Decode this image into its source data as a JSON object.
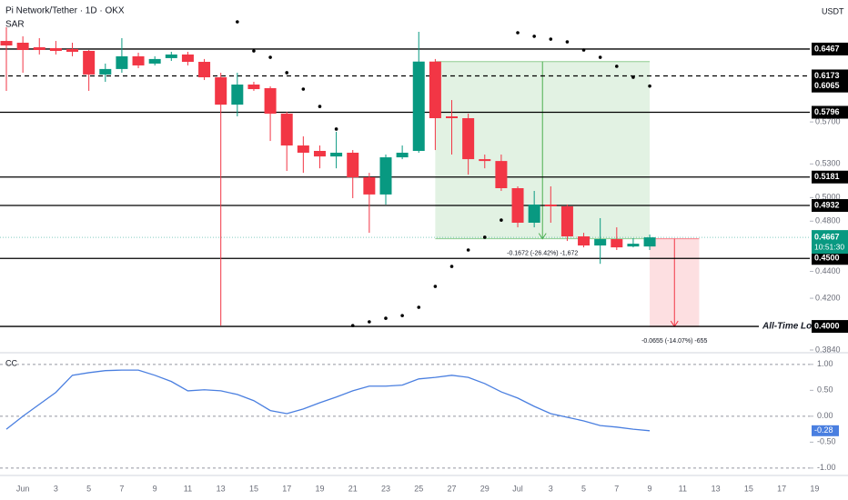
{
  "chart_data": [
    {
      "type": "candlestick",
      "title": "Pi Network/Tether · 1D · OKX",
      "indicator": "SAR",
      "currency": "USDT",
      "up_color": "#089981",
      "down_color": "#f23645",
      "categories": [
        null,
        "Jun",
        null,
        "3",
        null,
        "5",
        null,
        "7",
        null,
        "9",
        null,
        "11",
        null,
        "13",
        null,
        "15",
        null,
        "17",
        null,
        "19",
        null,
        "21",
        null,
        "23",
        null,
        "25",
        null,
        "27",
        null,
        "29",
        null,
        "Jul",
        null,
        "3",
        null,
        "5",
        null,
        "7",
        null,
        "9",
        null,
        "11",
        null,
        "13",
        null,
        "15",
        null,
        "17",
        null,
        "19"
      ],
      "open": [
        0.6558,
        0.6538,
        0.6487,
        0.6477,
        0.6467,
        0.6446,
        0.6188,
        0.6247,
        0.6386,
        0.6306,
        0.6366,
        0.6406,
        0.6325,
        0.6158,
        0.5873,
        0.6081,
        0.6043,
        0.5782,
        0.5472,
        0.5421,
        0.5369,
        0.5404,
        0.5179,
        0.5027,
        0.5361,
        0.5421,
        0.6328,
        0.5755,
        0.5737,
        0.5344,
        0.5327,
        0.5082,
        0.4787,
        0.494,
        0.4925,
        0.4675,
        0.4602,
        0.4653,
        0.4594,
        0.4594,
        null,
        null,
        null,
        null,
        null,
        null,
        null,
        null,
        null,
        null
      ],
      "high": [
        0.6716,
        0.6611,
        0.659,
        0.6558,
        0.6538,
        0.6456,
        0.6306,
        0.659,
        0.6426,
        0.6386,
        0.6436,
        0.6436,
        0.6356,
        0.6207,
        0.6207,
        0.611,
        0.6062,
        0.58,
        0.5559,
        0.5472,
        0.5603,
        0.5429,
        0.5219,
        0.5387,
        0.5472,
        0.6663,
        0.6356,
        0.592,
        0.5782,
        0.5387,
        0.5387,
        0.5098,
        0.5058,
        0.5098,
        0.494,
        0.4704,
        0.4825,
        0.4749,
        0.466,
        0.469,
        null,
        null,
        null,
        null,
        null,
        null,
        null,
        null,
        null,
        null
      ],
      "low": [
        0.6015,
        0.6207,
        0.6406,
        0.6406,
        0.6386,
        0.6015,
        0.611,
        0.6207,
        0.6256,
        0.6286,
        0.6335,
        0.6286,
        0.6129,
        0.4006,
        0.5755,
        0.6015,
        0.5515,
        0.5236,
        0.5219,
        0.526,
        0.526,
        0.4995,
        0.4704,
        0.494,
        0.5344,
        0.5404,
        0.5429,
        0.5387,
        0.5203,
        0.526,
        0.5058,
        0.4749,
        0.4749,
        0.4787,
        0.4638,
        0.4587,
        0.4458,
        0.4566,
        0.4587,
        0.4566,
        null,
        null,
        null,
        null,
        null,
        null,
        null,
        null,
        null,
        null
      ],
      "close": [
        0.6507,
        0.6456,
        0.6456,
        0.6446,
        0.6436,
        0.6188,
        0.6247,
        0.6386,
        0.6286,
        0.6356,
        0.6406,
        0.6325,
        0.6158,
        0.5873,
        0.6081,
        0.6033,
        0.5782,
        0.5472,
        0.5404,
        0.5369,
        0.5404,
        0.5179,
        0.5027,
        0.5361,
        0.5404,
        0.6328,
        0.5737,
        0.5737,
        0.5344,
        0.5327,
        0.5082,
        0.4787,
        0.494,
        0.4925,
        0.4675,
        0.4602,
        0.4653,
        0.4587,
        0.4616,
        0.4667,
        null,
        null,
        null,
        null,
        null,
        null,
        null,
        null,
        null,
        null
      ],
      "series": [
        {
          "name": "SAR",
          "color": "#000000",
          "last_value_label": "0.6065",
          "values": [
            null,
            null,
            null,
            null,
            null,
            null,
            null,
            null,
            null,
            null,
            null,
            null,
            null,
            null,
            0.6779,
            0.6446,
            0.6375,
            0.6207,
            0.6033,
            0.5855,
            0.563,
            0.4006,
            0.4032,
            0.4057,
            0.4076,
            0.4135,
            0.4287,
            0.4438,
            0.4566,
            0.4668,
            0.4809,
            0.6652,
            0.6611,
            0.6579,
            0.6548,
            0.6456,
            0.6375,
            0.6276,
            0.6158,
            0.6065,
            null,
            null,
            null,
            null,
            null,
            null,
            null,
            null,
            null,
            null
          ]
        }
      ],
      "ylim": [
        0.384,
        0.704
      ],
      "log_scale": true,
      "yticks": [
        {
          "value": 0.57,
          "label": "0.5700"
        },
        {
          "value": 0.53,
          "label": "0.5300"
        },
        {
          "value": 0.5,
          "label": "0.5000"
        },
        {
          "value": 0.48,
          "label": "0.4800"
        },
        {
          "value": 0.44,
          "label": "0.4400"
        },
        {
          "value": 0.42,
          "label": "0.4200"
        },
        {
          "value": 0.384,
          "label": "0.3840"
        }
      ],
      "levels": [
        {
          "value": 0.6467,
          "label": "0.6467",
          "style": "solid"
        },
        {
          "value": 0.6173,
          "label": "0.6173",
          "style": "dashed"
        },
        {
          "value": 0.5796,
          "label": "0.5796",
          "style": "solid"
        },
        {
          "value": 0.5181,
          "label": "0.5181",
          "style": "solid"
        },
        {
          "value": 0.4932,
          "label": "0.4932",
          "style": "solid"
        },
        {
          "value": 0.45,
          "label": "0.4500",
          "style": "solid"
        },
        {
          "value": 0.4,
          "label": "0.4000",
          "style": "solid",
          "text": "All-Time Low"
        }
      ],
      "last_price": {
        "value": 0.4667,
        "label": "0.4667",
        "countdown": "10:51:30"
      },
      "measures": [
        {
          "from": 0.6328,
          "to": 0.4656,
          "x_range": [
            26,
            39
          ],
          "color": "#4caf50",
          "label": "-0.1672 (-26.42%) -1,672"
        },
        {
          "from": 0.4656,
          "to": 0.4,
          "x_range": [
            39,
            42
          ],
          "color": "#f23645",
          "label": "-0.0655 (-14.07%) -655"
        }
      ]
    },
    {
      "type": "line",
      "title": "CC",
      "series": [
        {
          "name": "CC",
          "color": "#4a7fe0",
          "value_label": "-0.28",
          "values": [
            -0.25,
            0,
            0.23,
            0.46,
            0.79,
            0.84,
            0.88,
            0.89,
            0.89,
            0.79,
            0.67,
            0.49,
            0.51,
            0.49,
            0.42,
            0.3,
            0.11,
            0.05,
            0.14,
            0.26,
            0.37,
            0.49,
            0.58,
            0.58,
            0.6,
            0.72,
            0.75,
            0.79,
            0.75,
            0.63,
            0.47,
            0.35,
            0.19,
            0.05,
            -0.02,
            -0.09,
            -0.18,
            -0.21,
            -0.25,
            -0.28,
            null,
            null,
            null,
            null,
            null,
            null,
            null,
            null,
            null,
            null
          ]
        }
      ],
      "ylim": [
        -1.09,
        1.19
      ],
      "yticks": [
        {
          "value": 1,
          "label": "1.00"
        },
        {
          "value": 0.5,
          "label": "0.50"
        },
        {
          "value": 0,
          "label": "0.00"
        },
        {
          "value": -0.5,
          "label": "-0.50"
        },
        {
          "value": -1,
          "label": "-1.00"
        }
      ],
      "reference_lines": [
        1,
        0,
        -1
      ]
    }
  ]
}
